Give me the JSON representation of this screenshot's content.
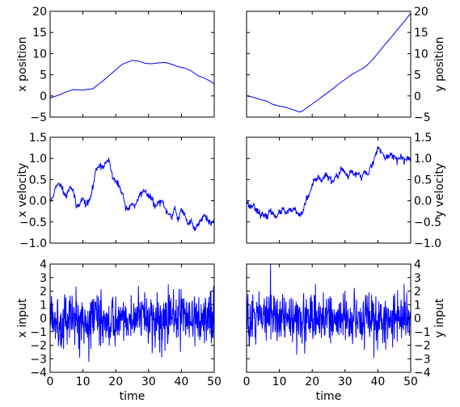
{
  "figure": {
    "background": "#ffffff",
    "line_color": "#0000ff",
    "axes_color": "#000000"
  },
  "chart_data": [
    {
      "id": "x-position",
      "type": "line",
      "title": "",
      "xlabel": "",
      "ylabel": "x position",
      "ylabel_side": "left",
      "xlim": [
        0,
        50
      ],
      "ylim": [
        -5,
        20
      ],
      "yticks": [
        -5,
        0,
        5,
        10,
        15,
        20
      ],
      "xticks_labeled": false,
      "series": [
        {
          "noisy": false,
          "x": [
            0,
            3,
            5,
            7,
            10,
            13,
            16,
            19,
            22,
            25,
            27,
            29,
            31,
            33,
            35,
            37,
            39,
            41,
            43,
            45,
            47,
            49,
            50
          ],
          "y": [
            -0.5,
            0.3,
            1.0,
            1.5,
            1.4,
            1.7,
            3.5,
            5.5,
            7.5,
            8.4,
            8.2,
            7.7,
            7.6,
            7.8,
            7.9,
            7.5,
            6.9,
            6.6,
            5.9,
            4.8,
            4.2,
            3.4,
            2.8
          ]
        }
      ]
    },
    {
      "id": "y-position",
      "type": "line",
      "title": "",
      "xlabel": "",
      "ylabel": "y position",
      "ylabel_side": "right",
      "xlim": [
        0,
        50
      ],
      "ylim": [
        -5,
        20
      ],
      "yticks": [
        -5,
        0,
        5,
        10,
        15,
        20
      ],
      "xticks_labeled": false,
      "series": [
        {
          "noisy": false,
          "x": [
            0,
            2,
            4,
            6,
            8,
            10,
            12,
            14,
            16,
            17,
            18,
            20,
            22,
            24,
            26,
            28,
            30,
            32,
            34,
            36,
            38,
            40,
            42,
            44,
            46,
            48,
            50
          ],
          "y": [
            0,
            -0.3,
            -0.8,
            -1.2,
            -2.0,
            -2.4,
            -2.7,
            -3.2,
            -3.8,
            -3.6,
            -3.0,
            -1.9,
            -0.8,
            0.4,
            1.5,
            2.8,
            3.9,
            5.0,
            5.9,
            6.8,
            8.2,
            10.1,
            12.0,
            13.8,
            15.7,
            17.6,
            19.5
          ]
        }
      ]
    },
    {
      "id": "x-velocity",
      "type": "line",
      "title": "",
      "xlabel": "",
      "ylabel": "x velocity",
      "ylabel_side": "left",
      "xlim": [
        0,
        50
      ],
      "ylim": [
        -1.0,
        1.5
      ],
      "yticks": [
        -1.0,
        -0.5,
        0.0,
        0.5,
        1.0,
        1.5
      ],
      "xticks_labeled": false,
      "series": [
        {
          "noisy": true,
          "noise": 0.04,
          "seed": 11,
          "x": [
            0,
            1,
            2,
            3,
            4,
            5,
            6,
            7,
            8,
            9,
            10,
            11,
            12,
            13,
            14,
            15,
            16,
            17,
            18,
            19,
            20,
            21,
            22,
            23,
            24,
            25,
            26,
            27,
            28,
            29,
            30,
            31,
            32,
            33,
            34,
            35,
            36,
            37,
            38,
            39,
            40,
            41,
            42,
            43,
            44,
            45,
            46,
            47,
            48,
            49,
            50
          ],
          "y": [
            -0.05,
            0.15,
            0.35,
            0.4,
            0.25,
            0.1,
            0.35,
            0.25,
            -0.15,
            -0.05,
            0.05,
            -0.1,
            0.0,
            0.3,
            0.75,
            0.85,
            0.8,
            0.9,
            0.95,
            0.55,
            0.45,
            0.35,
            0.2,
            -0.15,
            -0.2,
            -0.05,
            -0.15,
            0.1,
            0.2,
            0.25,
            0.1,
            0.05,
            -0.15,
            -0.05,
            0.0,
            -0.2,
            -0.3,
            -0.4,
            -0.15,
            -0.45,
            -0.2,
            -0.35,
            -0.55,
            -0.45,
            -0.7,
            -0.55,
            -0.45,
            -0.3,
            -0.45,
            -0.55,
            -0.45
          ]
        }
      ]
    },
    {
      "id": "y-velocity",
      "type": "line",
      "title": "",
      "xlabel": "",
      "ylabel": "y velocity",
      "ylabel_side": "right",
      "xlim": [
        0,
        50
      ],
      "ylim": [
        -1.0,
        1.5
      ],
      "yticks": [
        -1.0,
        -0.5,
        0.0,
        0.5,
        1.0,
        1.5
      ],
      "xticks_labeled": false,
      "series": [
        {
          "noisy": true,
          "noise": 0.04,
          "seed": 23,
          "x": [
            0,
            1,
            2,
            3,
            4,
            5,
            6,
            7,
            8,
            9,
            10,
            11,
            12,
            13,
            14,
            15,
            16,
            17,
            18,
            19,
            20,
            21,
            22,
            23,
            24,
            25,
            26,
            27,
            28,
            29,
            30,
            31,
            32,
            33,
            34,
            35,
            36,
            37,
            38,
            39,
            40,
            41,
            42,
            43,
            44,
            45,
            46,
            47,
            48,
            49,
            50
          ],
          "y": [
            0.0,
            -0.15,
            -0.1,
            -0.2,
            -0.3,
            -0.35,
            -0.4,
            -0.25,
            -0.3,
            -0.35,
            -0.3,
            -0.2,
            -0.3,
            -0.25,
            -0.2,
            -0.25,
            -0.35,
            -0.3,
            0.0,
            0.1,
            0.35,
            0.5,
            0.55,
            0.5,
            0.6,
            0.55,
            0.45,
            0.55,
            0.6,
            0.75,
            0.65,
            0.55,
            0.7,
            0.6,
            0.65,
            0.55,
            0.7,
            0.6,
            0.85,
            1.0,
            1.3,
            1.15,
            1.0,
            1.05,
            1.1,
            1.05,
            0.95,
            1.05,
            0.95,
            1.0,
            0.95
          ]
        }
      ]
    },
    {
      "id": "x-input",
      "type": "line",
      "title": "",
      "xlabel": "time",
      "ylabel": "x input",
      "ylabel_side": "left",
      "xlim": [
        0,
        50
      ],
      "ylim": [
        -4,
        4
      ],
      "yticks": [
        -4,
        -3,
        -2,
        -1,
        0,
        1,
        2,
        3,
        4
      ],
      "xticks": [
        0,
        10,
        20,
        30,
        40,
        50
      ],
      "xticks_labeled": true,
      "series": [
        {
          "white_noise": true,
          "sigma": 1.0,
          "seed": 5,
          "n": 500
        }
      ]
    },
    {
      "id": "y-input",
      "type": "line",
      "title": "",
      "xlabel": "time",
      "ylabel": "y input",
      "ylabel_side": "right",
      "xlim": [
        0,
        50
      ],
      "ylim": [
        -4,
        4
      ],
      "yticks": [
        -4,
        -3,
        -2,
        -1,
        0,
        1,
        2,
        3,
        4
      ],
      "xticks": [
        0,
        10,
        20,
        30,
        40,
        50
      ],
      "xticks_labeled": true,
      "series": [
        {
          "white_noise": true,
          "sigma": 1.0,
          "seed": 9,
          "n": 500
        }
      ]
    }
  ]
}
